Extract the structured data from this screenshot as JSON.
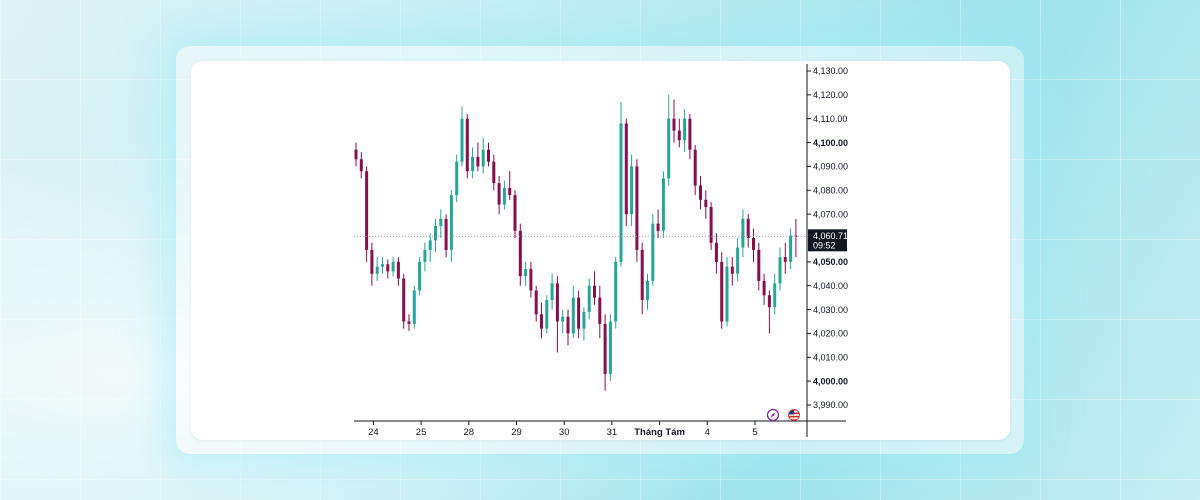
{
  "chart_data": {
    "type": "candlestick",
    "title": "",
    "xlabel": "",
    "ylabel": "",
    "ylim": [
      3985,
      4132
    ],
    "colors": {
      "up": "#26a69a",
      "down": "#880e4f",
      "label_bg": "#131722",
      "axis": "#131722"
    },
    "y_ticks": [
      {
        "value": 4130,
        "label": "4,130.00",
        "bold": false
      },
      {
        "value": 4120,
        "label": "4,120.00",
        "bold": false
      },
      {
        "value": 4110,
        "label": "4,110.00",
        "bold": false
      },
      {
        "value": 4100,
        "label": "4,100.00",
        "bold": true
      },
      {
        "value": 4090,
        "label": "4,090.00",
        "bold": false
      },
      {
        "value": 4080,
        "label": "4,080.00",
        "bold": false
      },
      {
        "value": 4070,
        "label": "4,070.00",
        "bold": false
      },
      {
        "value": 4050,
        "label": "4,050.00",
        "bold": true
      },
      {
        "value": 4040,
        "label": "4,040.00",
        "bold": false
      },
      {
        "value": 4030,
        "label": "4,030.00",
        "bold": false
      },
      {
        "value": 4020,
        "label": "4,020.00",
        "bold": false
      },
      {
        "value": 4010,
        "label": "4,010.00",
        "bold": false
      },
      {
        "value": 4000,
        "label": "4,000.00",
        "bold": true
      },
      {
        "value": 3990,
        "label": "3,990.00",
        "bold": false
      }
    ],
    "x_ticks": [
      {
        "label": "24",
        "index": 3,
        "bold": false
      },
      {
        "label": "25",
        "index": 12,
        "bold": false
      },
      {
        "label": "28",
        "index": 21,
        "bold": false
      },
      {
        "label": "29",
        "index": 30,
        "bold": false
      },
      {
        "label": "30",
        "index": 39,
        "bold": false
      },
      {
        "label": "31",
        "index": 48,
        "bold": false
      },
      {
        "label": "Tháng Tám",
        "index": 57,
        "bold": true
      },
      {
        "label": "4",
        "index": 66,
        "bold": false
      },
      {
        "label": "5",
        "index": 75,
        "bold": false
      }
    ],
    "last_price": {
      "value": 4060.71,
      "label": "4,060.71",
      "countdown": "09:52"
    },
    "ohlc": [
      [
        4097,
        4100,
        4090,
        4093
      ],
      [
        4093,
        4096,
        4085,
        4088
      ],
      [
        4088,
        4090,
        4050,
        4055
      ],
      [
        4055,
        4058,
        4040,
        4045
      ],
      [
        4045,
        4052,
        4042,
        4048
      ],
      [
        4048,
        4052,
        4045,
        4049
      ],
      [
        4049,
        4051,
        4043,
        4046
      ],
      [
        4046,
        4052,
        4044,
        4050
      ],
      [
        4050,
        4052,
        4040,
        4043
      ],
      [
        4043,
        4045,
        4022,
        4025
      ],
      [
        4025,
        4028,
        4021,
        4024
      ],
      [
        4024,
        4040,
        4022,
        4038
      ],
      [
        4038,
        4052,
        4036,
        4050
      ],
      [
        4050,
        4058,
        4046,
        4055
      ],
      [
        4055,
        4062,
        4050,
        4059
      ],
      [
        4059,
        4068,
        4054,
        4065
      ],
      [
        4065,
        4072,
        4060,
        4068
      ],
      [
        4068,
        4070,
        4052,
        4055
      ],
      [
        4055,
        4080,
        4050,
        4078
      ],
      [
        4078,
        4095,
        4075,
        4092
      ],
      [
        4092,
        4115,
        4090,
        4110
      ],
      [
        4110,
        4112,
        4085,
        4088
      ],
      [
        4088,
        4098,
        4085,
        4094
      ],
      [
        4094,
        4100,
        4088,
        4090
      ],
      [
        4090,
        4102,
        4087,
        4097
      ],
      [
        4097,
        4100,
        4090,
        4092
      ],
      [
        4092,
        4095,
        4080,
        4083
      ],
      [
        4083,
        4086,
        4070,
        4074
      ],
      [
        4074,
        4084,
        4072,
        4081
      ],
      [
        4081,
        4088,
        4076,
        4078
      ],
      [
        4078,
        4080,
        4060,
        4063
      ],
      [
        4063,
        4066,
        4040,
        4044
      ],
      [
        4044,
        4050,
        4040,
        4047
      ],
      [
        4047,
        4050,
        4035,
        4038
      ],
      [
        4038,
        4040,
        4025,
        4028
      ],
      [
        4028,
        4033,
        4018,
        4022
      ],
      [
        4022,
        4036,
        4020,
        4034
      ],
      [
        4034,
        4045,
        4030,
        4041
      ],
      [
        4041,
        4044,
        4012,
        4025
      ],
      [
        4025,
        4030,
        4020,
        4027
      ],
      [
        4027,
        4030,
        4015,
        4020
      ],
      [
        4020,
        4040,
        4018,
        4035
      ],
      [
        4035,
        4038,
        4018,
        4022
      ],
      [
        4022,
        4031,
        4017,
        4029
      ],
      [
        4029,
        4043,
        4026,
        4040
      ],
      [
        4040,
        4046,
        4032,
        4035
      ],
      [
        4035,
        4040,
        4018,
        4024
      ],
      [
        4024,
        4028,
        3996,
        4003
      ],
      [
        4003,
        4028,
        4000,
        4025
      ],
      [
        4025,
        4052,
        4022,
        4050
      ],
      [
        4050,
        4117,
        4048,
        4108
      ],
      [
        4108,
        4110,
        4065,
        4070
      ],
      [
        4070,
        4095,
        4065,
        4090
      ],
      [
        4090,
        4093,
        4050,
        4055
      ],
      [
        4055,
        4058,
        4028,
        4034
      ],
      [
        4034,
        4045,
        4030,
        4042
      ],
      [
        4042,
        4070,
        4040,
        4066
      ],
      [
        4066,
        4072,
        4060,
        4063
      ],
      [
        4063,
        4088,
        4060,
        4085
      ],
      [
        4085,
        4120,
        4082,
        4110
      ],
      [
        4110,
        4118,
        4100,
        4105
      ],
      [
        4105,
        4110,
        4098,
        4101
      ],
      [
        4101,
        4114,
        4096,
        4110
      ],
      [
        4110,
        4112,
        4093,
        4097
      ],
      [
        4097,
        4099,
        4078,
        4082
      ],
      [
        4082,
        4086,
        4072,
        4076
      ],
      [
        4076,
        4080,
        4068,
        4073
      ],
      [
        4073,
        4075,
        4055,
        4058
      ],
      [
        4058,
        4062,
        4045,
        4050
      ],
      [
        4050,
        4054,
        4022,
        4025
      ],
      [
        4025,
        4052,
        4023,
        4048
      ],
      [
        4048,
        4052,
        4040,
        4045
      ],
      [
        4045,
        4060,
        4042,
        4056
      ],
      [
        4056,
        4072,
        4052,
        4068
      ],
      [
        4068,
        4070,
        4056,
        4060
      ],
      [
        4060,
        4064,
        4050,
        4055
      ],
      [
        4055,
        4058,
        4038,
        4042
      ],
      [
        4042,
        4045,
        4032,
        4036
      ],
      [
        4036,
        4038,
        4020,
        4031
      ],
      [
        4031,
        4045,
        4028,
        4041
      ],
      [
        4041,
        4056,
        4038,
        4052
      ],
      [
        4052,
        4058,
        4045,
        4050
      ],
      [
        4050,
        4064,
        4047,
        4061
      ],
      [
        4061,
        4068,
        4052,
        4060.71
      ]
    ]
  }
}
